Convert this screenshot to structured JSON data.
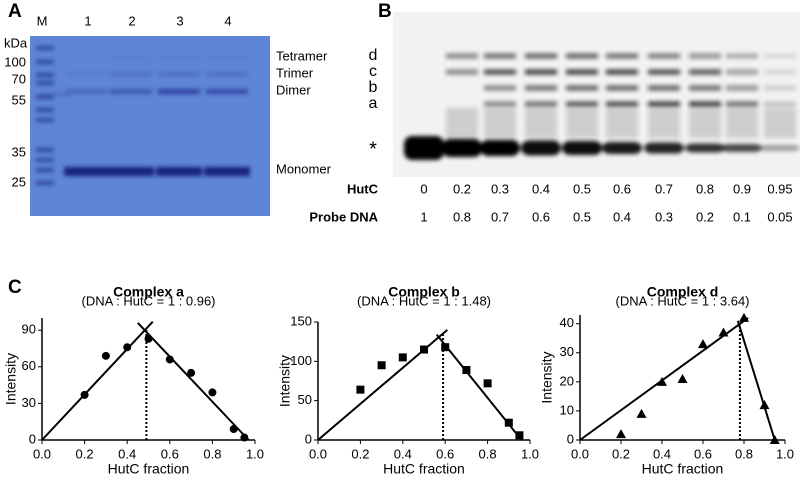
{
  "panel_a": {
    "label": "A",
    "unit": "kDa",
    "lanes": [
      "M",
      "1",
      "2",
      "3",
      "4"
    ],
    "markers": [
      100,
      70,
      55,
      35,
      25
    ],
    "bands": [
      "Tetramer",
      "Trimer",
      "Dimer",
      "Monomer"
    ]
  },
  "panel_b": {
    "label": "B",
    "complexes": [
      "d",
      "c",
      "b",
      "a",
      "*"
    ],
    "rows": [
      {
        "name": "HutC",
        "values": [
          0,
          0.2,
          0.3,
          0.4,
          0.5,
          0.6,
          0.7,
          0.8,
          0.9,
          0.95
        ]
      },
      {
        "name": "Probe DNA",
        "values": [
          1,
          0.8,
          0.7,
          0.6,
          0.5,
          0.4,
          0.3,
          0.2,
          0.1,
          0.05
        ]
      }
    ]
  },
  "panel_c": {
    "label": "C"
  },
  "chart_data": [
    {
      "type": "scatter",
      "title": "Complex a",
      "subtitle": "(DNA : HutC = 1 : 0.96)",
      "x_label": "HutC fraction",
      "y_label": "Intensity",
      "marker": "circle",
      "color": "#000000",
      "x": [
        0.2,
        0.3,
        0.4,
        0.5,
        0.6,
        0.7,
        0.8,
        0.9,
        0.95
      ],
      "values": [
        37,
        69,
        76,
        83,
        66,
        55,
        39,
        9,
        2
      ],
      "xlim": [
        0,
        1
      ],
      "xticks": [
        {
          "value": 0,
          "label": "0.0"
        },
        0.2,
        0.4,
        0.6,
        0.8,
        {
          "value": 1,
          "label": "1.0"
        }
      ],
      "ylim": [
        0,
        100
      ],
      "yticks": [
        0,
        30,
        60,
        90
      ],
      "fit_lines": [
        {
          "x": [
            0,
            0.52
          ],
          "values": [
            0,
            97
          ]
        },
        {
          "x": [
            0.45,
            0.97
          ],
          "values": [
            96,
            0
          ]
        }
      ],
      "ratio_line": {
        "x": [
          0.49,
          0.49
        ],
        "values": [
          0,
          91
        ]
      }
    },
    {
      "type": "scatter",
      "title": "Complex b",
      "subtitle": "(DNA : HutC = 1 : 1.48)",
      "x_label": "HutC fraction",
      "y_label": "Intensity",
      "marker": "square",
      "color": "#000000",
      "x": [
        0.2,
        0.3,
        0.4,
        0.5,
        0.6,
        0.7,
        0.8,
        0.9,
        0.95
      ],
      "values": [
        64,
        95,
        105,
        115,
        118,
        89,
        72,
        22,
        6
      ],
      "xlim": [
        0,
        1
      ],
      "xticks": [
        {
          "value": 0,
          "label": "0.0"
        },
        0.2,
        0.4,
        0.6,
        0.8,
        {
          "value": 1,
          "label": "1.0"
        }
      ],
      "ylim": [
        0,
        150
      ],
      "yticks": [
        0,
        50,
        100,
        150
      ],
      "fit_lines": [
        {
          "x": [
            0,
            0.61
          ],
          "values": [
            0,
            140
          ]
        },
        {
          "x": [
            0.56,
            0.96
          ],
          "values": [
            134,
            0
          ]
        }
      ],
      "ratio_line": {
        "x": [
          0.59,
          0.59
        ],
        "values": [
          0,
          134
        ]
      }
    },
    {
      "type": "scatter",
      "title": "Complex d",
      "subtitle": "(DNA : HutC = 1 : 3.64)",
      "x_label": "HutC fraction",
      "y_label": "Intensity",
      "marker": "triangle",
      "color": "#000000",
      "x": [
        0.2,
        0.3,
        0.4,
        0.5,
        0.6,
        0.7,
        0.8,
        0.9,
        0.95
      ],
      "values": [
        2,
        9,
        20,
        21,
        33,
        37,
        42,
        12,
        0
      ],
      "xlim": [
        0,
        1
      ],
      "xticks": [
        {
          "value": 0,
          "label": "0.0"
        },
        0.2,
        0.4,
        0.6,
        0.8,
        {
          "value": 1,
          "label": "1.0"
        }
      ],
      "ylim": [
        0,
        43
      ],
      "yticks": [
        0,
        10,
        20,
        30,
        40
      ],
      "fit_lines": [
        {
          "x": [
            0,
            0.82
          ],
          "values": [
            0,
            42
          ]
        },
        {
          "x": [
            0.77,
            0.95
          ],
          "values": [
            41,
            0
          ]
        }
      ],
      "ratio_line": {
        "x": [
          0.78,
          0.78
        ],
        "values": [
          0,
          39
        ]
      }
    }
  ]
}
